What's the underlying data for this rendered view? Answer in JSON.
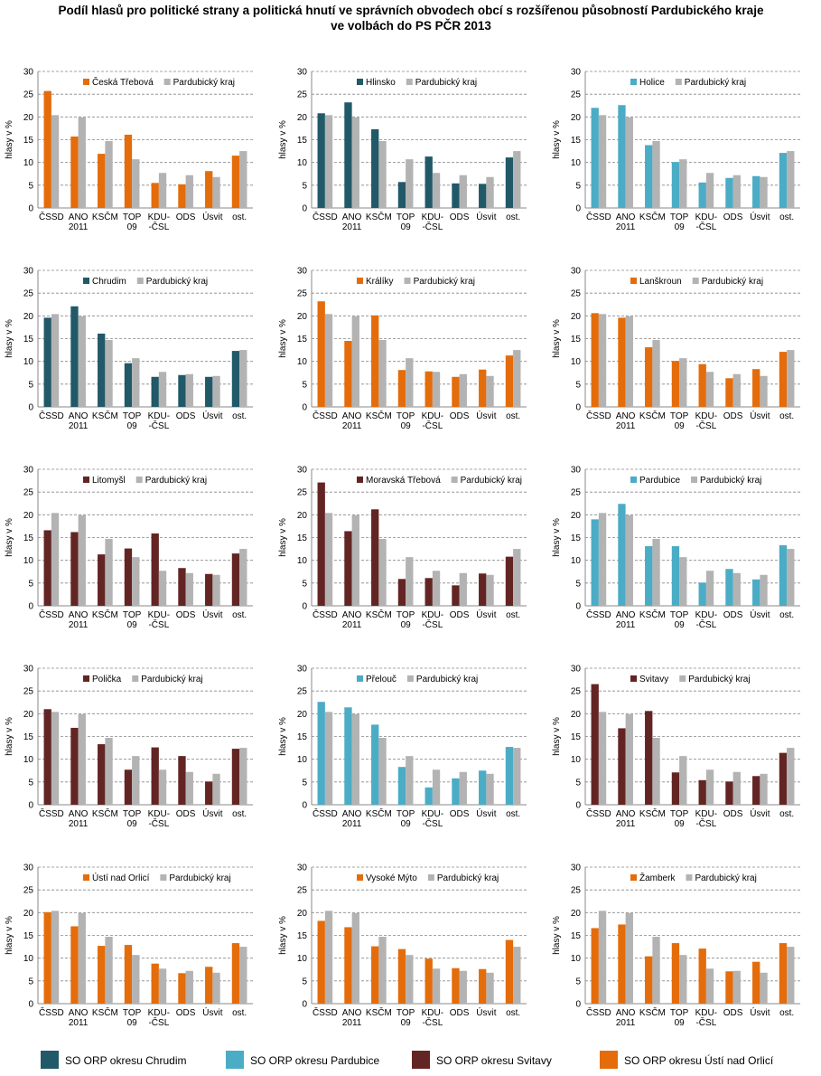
{
  "title": "Podíl hlasů pro politické strany a politická hnutí ve správních obvodech obcí s rozšířenou působností Pardubického kraje\nve volbách do PS PČR 2013",
  "legend": [
    {
      "label": "SO ORP okresu Chrudim",
      "color": "#215968"
    },
    {
      "label": "SO ORP okresu Pardubice",
      "color": "#4bacc6"
    },
    {
      "label": "SO ORP okresu Svitavy",
      "color": "#632523"
    },
    {
      "label": "SO ORP okresu Ústí nad Orlicí",
      "color": "#e46c0a"
    }
  ],
  "chart_data": [
    {
      "type": "bar",
      "ylabel": "hlasy v %",
      "categories": [
        "ČSSD",
        "ANO\n2011",
        "KSČM",
        "TOP\n09",
        "KDU-\n-ČSL",
        "ODS",
        "Úsvit",
        "ost."
      ],
      "ylim": [
        0,
        30
      ],
      "yticks": [
        0,
        5,
        10,
        15,
        20,
        25,
        30
      ],
      "grid": true,
      "series": [
        {
          "name": "Česká Třebová",
          "color": "#e46c0a",
          "values": [
            25.7,
            15.7,
            11.9,
            16.1,
            5.5,
            5.2,
            8.1,
            11.5
          ]
        },
        {
          "name": "Pardubický kraj",
          "color": "#b3b3b3",
          "values": [
            20.4,
            19.9,
            14.7,
            10.7,
            7.7,
            7.2,
            6.8,
            12.5
          ]
        }
      ]
    },
    {
      "type": "bar",
      "ylabel": "hlasy v %",
      "categories": [
        "ČSSD",
        "ANO\n2011",
        "KSČM",
        "TOP\n09",
        "KDU-\n-ČSL",
        "ODS",
        "Úsvit",
        "ost."
      ],
      "ylim": [
        0,
        30
      ],
      "yticks": [
        0,
        5,
        10,
        15,
        20,
        25,
        30
      ],
      "grid": true,
      "series": [
        {
          "name": "Hlinsko",
          "color": "#215968",
          "values": [
            20.8,
            23.2,
            17.3,
            5.7,
            11.3,
            5.4,
            5.3,
            11.1
          ]
        },
        {
          "name": "Pardubický kraj",
          "color": "#b3b3b3",
          "values": [
            20.4,
            19.9,
            14.7,
            10.7,
            7.7,
            7.2,
            6.8,
            12.5
          ]
        }
      ]
    },
    {
      "type": "bar",
      "ylabel": "hlasy v %",
      "categories": [
        "ČSSD",
        "ANO\n2011",
        "KSČM",
        "TOP\n09",
        "KDU-\n-ČSL",
        "ODS",
        "Úsvit",
        "ost."
      ],
      "ylim": [
        0,
        30
      ],
      "yticks": [
        0,
        5,
        10,
        15,
        20,
        25,
        30
      ],
      "grid": true,
      "series": [
        {
          "name": "Holice",
          "color": "#4bacc6",
          "values": [
            22.0,
            22.6,
            13.8,
            10.1,
            5.6,
            6.6,
            7.0,
            12.1
          ]
        },
        {
          "name": "Pardubický kraj",
          "color": "#b3b3b3",
          "values": [
            20.4,
            19.9,
            14.7,
            10.7,
            7.7,
            7.2,
            6.8,
            12.5
          ]
        }
      ]
    },
    {
      "type": "bar",
      "ylabel": "hlasy v %",
      "categories": [
        "ČSSD",
        "ANO\n2011",
        "KSČM",
        "TOP\n09",
        "KDU-\n-ČSL",
        "ODS",
        "Úsvit",
        "ost."
      ],
      "ylim": [
        0,
        30
      ],
      "yticks": [
        0,
        5,
        10,
        15,
        20,
        25,
        30
      ],
      "grid": true,
      "series": [
        {
          "name": "Chrudim",
          "color": "#215968",
          "values": [
            19.6,
            22.1,
            16.1,
            9.6,
            6.6,
            7.0,
            6.6,
            12.3
          ]
        },
        {
          "name": "Pardubický kraj",
          "color": "#b3b3b3",
          "values": [
            20.4,
            19.9,
            14.7,
            10.7,
            7.7,
            7.2,
            6.8,
            12.5
          ]
        }
      ]
    },
    {
      "type": "bar",
      "ylabel": "hlasy v %",
      "categories": [
        "ČSSD",
        "ANO\n2011",
        "KSČM",
        "TOP\n09",
        "KDU-\n-ČSL",
        "ODS",
        "Úsvit",
        "ost."
      ],
      "ylim": [
        0,
        30
      ],
      "yticks": [
        0,
        5,
        10,
        15,
        20,
        25,
        30
      ],
      "grid": true,
      "series": [
        {
          "name": "Králíky",
          "color": "#e46c0a",
          "values": [
            23.2,
            14.5,
            20.1,
            8.1,
            7.8,
            6.6,
            8.2,
            11.3
          ]
        },
        {
          "name": "Pardubický kraj",
          "color": "#b3b3b3",
          "values": [
            20.4,
            19.9,
            14.7,
            10.7,
            7.7,
            7.2,
            6.8,
            12.5
          ]
        }
      ]
    },
    {
      "type": "bar",
      "ylabel": "hlasy v %",
      "categories": [
        "ČSSD",
        "ANO\n2011",
        "KSČM",
        "TOP\n09",
        "KDU-\n-ČSL",
        "ODS",
        "Úsvit",
        "ost."
      ],
      "ylim": [
        0,
        30
      ],
      "yticks": [
        0,
        5,
        10,
        15,
        20,
        25,
        30
      ],
      "grid": true,
      "series": [
        {
          "name": "Lanškroun",
          "color": "#e46c0a",
          "values": [
            20.6,
            19.6,
            13.1,
            10.1,
            9.4,
            6.3,
            8.3,
            12.1
          ]
        },
        {
          "name": "Pardubický kraj",
          "color": "#b3b3b3",
          "values": [
            20.4,
            19.9,
            14.7,
            10.7,
            7.7,
            7.2,
            6.8,
            12.5
          ]
        }
      ]
    },
    {
      "type": "bar",
      "ylabel": "hlasy v %",
      "categories": [
        "ČSSD",
        "ANO\n2011",
        "KSČM",
        "TOP\n09",
        "KDU-\n-ČSL",
        "ODS",
        "Úsvit",
        "ost."
      ],
      "ylim": [
        0,
        30
      ],
      "yticks": [
        0,
        5,
        10,
        15,
        20,
        25,
        30
      ],
      "grid": true,
      "series": [
        {
          "name": "Litomyšl",
          "color": "#632523",
          "values": [
            16.6,
            16.2,
            11.3,
            12.6,
            15.9,
            8.3,
            7.0,
            11.5
          ]
        },
        {
          "name": "Pardubický kraj",
          "color": "#b3b3b3",
          "values": [
            20.4,
            19.9,
            14.7,
            10.7,
            7.7,
            7.2,
            6.8,
            12.5
          ]
        }
      ]
    },
    {
      "type": "bar",
      "ylabel": "hlasy v %",
      "categories": [
        "ČSSD",
        "ANO\n2011",
        "KSČM",
        "TOP\n09",
        "KDU-\n-ČSL",
        "ODS",
        "Úsvit",
        "ost."
      ],
      "ylim": [
        0,
        30
      ],
      "yticks": [
        0,
        5,
        10,
        15,
        20,
        25,
        30
      ],
      "grid": true,
      "series": [
        {
          "name": "Moravská Třebová",
          "color": "#632523",
          "values": [
            27.1,
            16.4,
            21.2,
            5.9,
            6.1,
            4.5,
            7.1,
            10.8
          ]
        },
        {
          "name": "Pardubický kraj",
          "color": "#b3b3b3",
          "values": [
            20.4,
            19.9,
            14.7,
            10.7,
            7.7,
            7.2,
            6.8,
            12.5
          ]
        }
      ]
    },
    {
      "type": "bar",
      "ylabel": "hlasy v %",
      "categories": [
        "ČSSD",
        "ANO\n2011",
        "KSČM",
        "TOP\n09",
        "KDU-\n-ČSL",
        "ODS",
        "Úsvit",
        "ost."
      ],
      "ylim": [
        0,
        30
      ],
      "yticks": [
        0,
        5,
        10,
        15,
        20,
        25,
        30
      ],
      "grid": true,
      "series": [
        {
          "name": "Pardubice",
          "color": "#4bacc6",
          "values": [
            19.0,
            22.4,
            13.1,
            13.1,
            5.1,
            8.1,
            5.8,
            13.3
          ]
        },
        {
          "name": "Pardubický kraj",
          "color": "#b3b3b3",
          "values": [
            20.4,
            19.9,
            14.7,
            10.7,
            7.7,
            7.2,
            6.8,
            12.5
          ]
        }
      ]
    },
    {
      "type": "bar",
      "ylabel": "hlasy v %",
      "categories": [
        "ČSSD",
        "ANO\n2011",
        "KSČM",
        "TOP\n09",
        "KDU-\n-ČSL",
        "ODS",
        "Úsvit",
        "ost."
      ],
      "ylim": [
        0,
        30
      ],
      "yticks": [
        0,
        5,
        10,
        15,
        20,
        25,
        30
      ],
      "grid": true,
      "series": [
        {
          "name": "Polička",
          "color": "#632523",
          "values": [
            21.0,
            16.9,
            13.3,
            7.7,
            12.6,
            10.7,
            5.1,
            12.3
          ]
        },
        {
          "name": "Pardubický kraj",
          "color": "#b3b3b3",
          "values": [
            20.4,
            19.9,
            14.7,
            10.7,
            7.7,
            7.2,
            6.8,
            12.5
          ]
        }
      ]
    },
    {
      "type": "bar",
      "ylabel": "hlasy v %",
      "categories": [
        "ČSSD",
        "ANO\n2011",
        "KSČM",
        "TOP\n09",
        "KDU-\n-ČSL",
        "ODS",
        "Úsvit",
        "ost."
      ],
      "ylim": [
        0,
        30
      ],
      "yticks": [
        0,
        5,
        10,
        15,
        20,
        25,
        30
      ],
      "grid": true,
      "series": [
        {
          "name": "Přelouč",
          "color": "#4bacc6",
          "values": [
            22.6,
            21.4,
            17.6,
            8.3,
            3.8,
            5.8,
            7.5,
            12.7
          ]
        },
        {
          "name": "Pardubický kraj",
          "color": "#b3b3b3",
          "values": [
            20.4,
            19.9,
            14.7,
            10.7,
            7.7,
            7.2,
            6.8,
            12.5
          ]
        }
      ]
    },
    {
      "type": "bar",
      "ylabel": "hlasy v %",
      "categories": [
        "ČSSD",
        "ANO\n2011",
        "KSČM",
        "TOP\n09",
        "KDU-\n-ČSL",
        "ODS",
        "Úsvit",
        "ost."
      ],
      "ylim": [
        0,
        30
      ],
      "yticks": [
        0,
        5,
        10,
        15,
        20,
        25,
        30
      ],
      "grid": true,
      "series": [
        {
          "name": "Svitavy",
          "color": "#632523",
          "values": [
            26.5,
            16.8,
            20.6,
            7.1,
            5.4,
            5.1,
            6.3,
            11.4
          ]
        },
        {
          "name": "Pardubický kraj",
          "color": "#b3b3b3",
          "values": [
            20.4,
            19.9,
            14.7,
            10.7,
            7.7,
            7.2,
            6.8,
            12.5
          ]
        }
      ]
    },
    {
      "type": "bar",
      "ylabel": "hlasy v %",
      "categories": [
        "ČSSD",
        "ANO\n2011",
        "KSČM",
        "TOP\n09",
        "KDU-\n-ČSL",
        "ODS",
        "Úsvit",
        "ost."
      ],
      "ylim": [
        0,
        30
      ],
      "yticks": [
        0,
        5,
        10,
        15,
        20,
        25,
        30
      ],
      "grid": true,
      "series": [
        {
          "name": "Ústí nad Orlicí",
          "color": "#e46c0a",
          "values": [
            20.1,
            17.0,
            12.7,
            12.9,
            8.8,
            6.7,
            8.1,
            13.3
          ]
        },
        {
          "name": "Pardubický kraj",
          "color": "#b3b3b3",
          "values": [
            20.4,
            19.9,
            14.7,
            10.7,
            7.7,
            7.2,
            6.8,
            12.5
          ]
        }
      ]
    },
    {
      "type": "bar",
      "ylabel": "hlasy v %",
      "categories": [
        "ČSSD",
        "ANO\n2011",
        "KSČM",
        "TOP\n09",
        "KDU-\n-ČSL",
        "ODS",
        "Úsvit",
        "ost."
      ],
      "ylim": [
        0,
        30
      ],
      "yticks": [
        0,
        5,
        10,
        15,
        20,
        25,
        30
      ],
      "grid": true,
      "series": [
        {
          "name": "Vysoké Mýto",
          "color": "#e46c0a",
          "values": [
            18.2,
            16.8,
            12.6,
            12.0,
            9.9,
            7.8,
            7.6,
            14.0
          ]
        },
        {
          "name": "Pardubický kraj",
          "color": "#b3b3b3",
          "values": [
            20.4,
            19.9,
            14.7,
            10.7,
            7.7,
            7.2,
            6.8,
            12.5
          ]
        }
      ]
    },
    {
      "type": "bar",
      "ylabel": "hlasy v %",
      "categories": [
        "ČSSD",
        "ANO\n2011",
        "KSČM",
        "TOP\n09",
        "KDU-\n-ČSL",
        "ODS",
        "Úsvit",
        "ost."
      ],
      "ylim": [
        0,
        30
      ],
      "yticks": [
        0,
        5,
        10,
        15,
        20,
        25,
        30
      ],
      "grid": true,
      "series": [
        {
          "name": "Žamberk",
          "color": "#e46c0a",
          "values": [
            16.6,
            17.4,
            10.4,
            13.3,
            12.1,
            7.1,
            9.2,
            13.3
          ]
        },
        {
          "name": "Pardubický kraj",
          "color": "#b3b3b3",
          "values": [
            20.4,
            19.9,
            14.7,
            10.7,
            7.7,
            7.2,
            6.8,
            12.5
          ]
        }
      ]
    }
  ]
}
